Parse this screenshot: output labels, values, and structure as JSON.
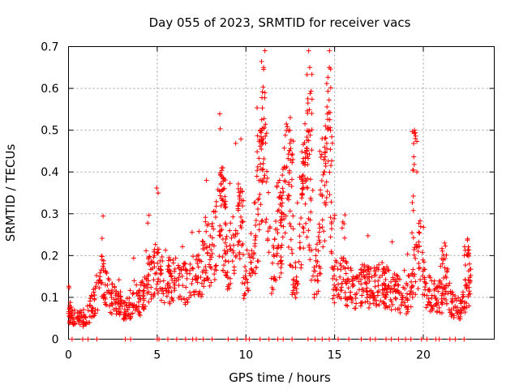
{
  "chart_data": {
    "type": "scatter",
    "title": "Day 055 of 2023, SRMTID for receiver vacs",
    "xlabel": "GPS time / hours",
    "ylabel": "SRMTID / TECUs",
    "xlim": [
      0,
      24
    ],
    "ylim": [
      0,
      0.7
    ],
    "x_ticks": [
      "0",
      "5",
      "10",
      "15",
      "20"
    ],
    "x_tick_values": [
      0,
      5,
      10,
      15,
      20
    ],
    "y_ticks": [
      "0",
      "0.1",
      "0.2",
      "0.3",
      "0.4",
      "0.5",
      "0.6",
      "0.7"
    ],
    "y_tick_values": [
      0,
      0.1,
      0.2,
      0.3,
      0.4,
      0.5,
      0.6,
      0.7
    ],
    "grid": true,
    "marker": "plus",
    "color": "#ff0000",
    "series": [
      {
        "name": "SRMTID",
        "profile": [
          [
            0.0,
            0.06
          ],
          [
            0.3,
            0.05
          ],
          [
            0.7,
            0.05
          ],
          [
            1.0,
            0.04
          ],
          [
            1.3,
            0.08
          ],
          [
            1.7,
            0.11
          ],
          [
            1.9,
            0.15
          ],
          [
            2.2,
            0.11
          ],
          [
            2.6,
            0.09
          ],
          [
            3.0,
            0.08
          ],
          [
            3.4,
            0.07
          ],
          [
            3.7,
            0.11
          ],
          [
            4.0,
            0.09
          ],
          [
            4.3,
            0.12
          ],
          [
            4.6,
            0.15
          ],
          [
            4.9,
            0.18
          ],
          [
            5.2,
            0.15
          ],
          [
            5.6,
            0.14
          ],
          [
            6.0,
            0.14
          ],
          [
            6.5,
            0.13
          ],
          [
            7.0,
            0.15
          ],
          [
            7.5,
            0.16
          ],
          [
            7.8,
            0.24
          ],
          [
            8.0,
            0.2
          ],
          [
            8.3,
            0.23
          ],
          [
            8.6,
            0.32
          ],
          [
            8.9,
            0.18
          ],
          [
            9.3,
            0.22
          ],
          [
            9.6,
            0.28
          ],
          [
            9.9,
            0.14
          ],
          [
            10.3,
            0.2
          ],
          [
            10.6,
            0.28
          ],
          [
            10.9,
            0.35
          ],
          [
            11.1,
            0.42
          ],
          [
            11.4,
            0.16
          ],
          [
            11.7,
            0.21
          ],
          [
            12.0,
            0.26
          ],
          [
            12.3,
            0.39
          ],
          [
            12.6,
            0.17
          ],
          [
            12.9,
            0.16
          ],
          [
            13.2,
            0.3
          ],
          [
            13.5,
            0.41
          ],
          [
            13.8,
            0.13
          ],
          [
            14.1,
            0.18
          ],
          [
            14.4,
            0.3
          ],
          [
            14.7,
            0.48
          ],
          [
            14.9,
            0.13
          ],
          [
            15.3,
            0.15
          ],
          [
            15.7,
            0.13
          ],
          [
            16.2,
            0.11
          ],
          [
            16.7,
            0.14
          ],
          [
            17.0,
            0.12
          ],
          [
            17.5,
            0.13
          ],
          [
            18.0,
            0.12
          ],
          [
            18.5,
            0.11
          ],
          [
            19.0,
            0.09
          ],
          [
            19.4,
            0.14
          ],
          [
            19.8,
            0.22
          ],
          [
            20.1,
            0.12
          ],
          [
            20.5,
            0.1
          ],
          [
            21.0,
            0.1
          ],
          [
            21.4,
            0.1
          ],
          [
            21.8,
            0.08
          ],
          [
            22.2,
            0.07
          ],
          [
            22.5,
            0.13
          ],
          [
            22.7,
            0.13
          ]
        ],
        "peaks": [
          [
            8.7,
            0.41
          ],
          [
            9.7,
            0.36
          ],
          [
            10.8,
            0.5
          ],
          [
            11.0,
            0.65
          ],
          [
            11.9,
            0.38
          ],
          [
            12.5,
            0.53
          ],
          [
            13.3,
            0.47
          ],
          [
            13.6,
            0.65
          ],
          [
            14.3,
            0.48
          ],
          [
            14.7,
            0.65
          ],
          [
            19.5,
            0.5
          ],
          [
            21.2,
            0.23
          ],
          [
            22.5,
            0.24
          ]
        ],
        "zero_points": [
          0.2,
          0.8,
          1.1,
          1.6,
          3.2,
          3.5,
          5.0,
          5.1,
          5.6,
          6.1,
          6.6,
          7.0,
          7.2,
          7.6,
          8.1,
          9.0,
          9.5,
          10.0,
          10.2,
          10.8,
          11.3,
          11.8,
          12.1,
          12.6,
          13.5,
          13.9,
          14.3,
          14.7,
          15.2,
          15.8,
          16.5,
          17.0,
          17.3,
          17.9,
          18.2,
          18.6,
          19.0,
          19.3,
          19.9,
          20.2,
          20.7,
          20.9,
          21.5,
          21.8,
          22.3
        ],
        "count": 1400
      }
    ]
  }
}
